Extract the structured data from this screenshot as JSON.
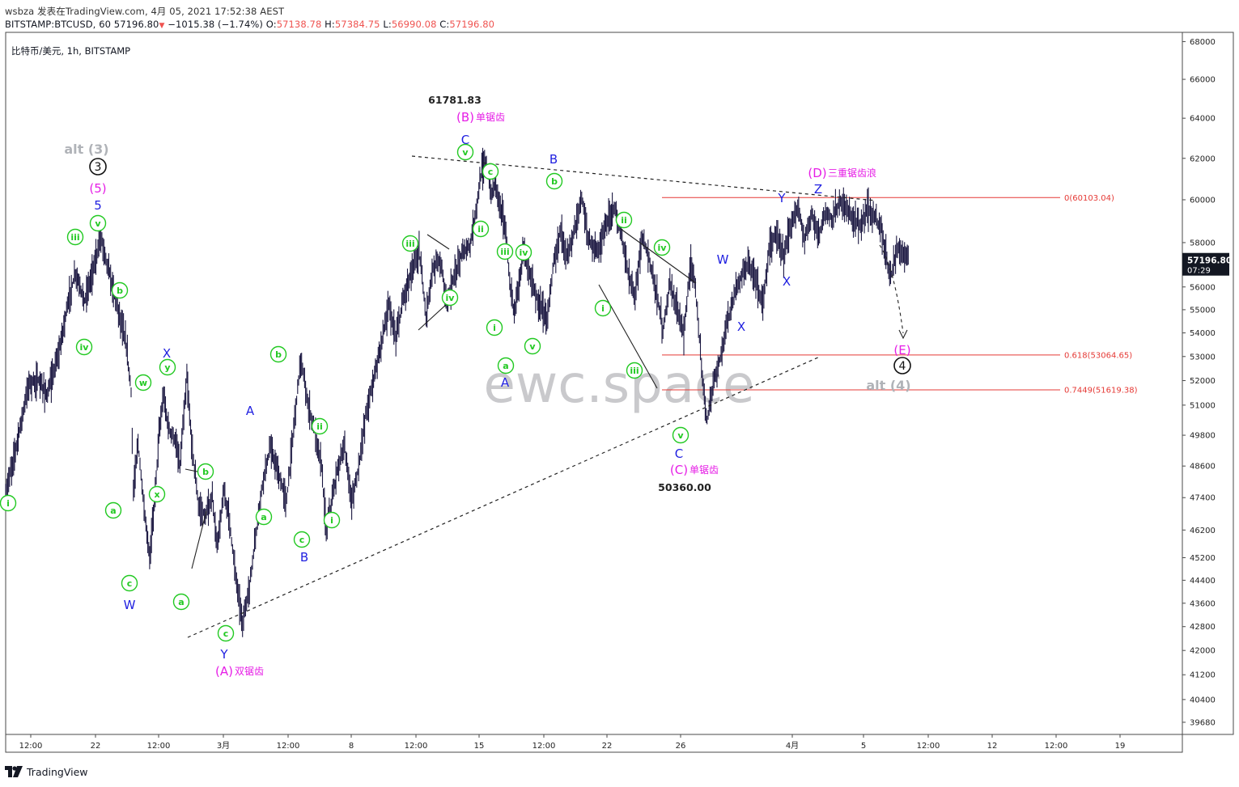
{
  "header": {
    "line1": "wsbza 发表在TradingView.com, 4月 05, 2021 17:52:38 AEST",
    "symbol": "BITSTAMP:BTCUSD, 60",
    "last": "57196.80",
    "change": "−1015.38 (−1.74%)",
    "o_label": "O:",
    "o_value": "57138.78",
    "h_label": "H:",
    "h_value": "57384.75",
    "l_label": "L:",
    "l_value": "56990.08",
    "c_label": "C:",
    "c_value": "57196.80"
  },
  "pane_title": "比特币/美元, 1h, BITSTAMP",
  "watermark": "ewc.space",
  "footer": {
    "brand": "TradingView"
  },
  "price_tag": {
    "price": "57196.80",
    "countdown": "07:29",
    "color": "#131722"
  },
  "colors": {
    "candles": "#1a1640",
    "wave_green": "#22c922",
    "wave_blue": "#1f1fe0",
    "wave_magenta": "#e61ee6",
    "alt_gray": "#b0b3b8",
    "fib_red": "#e53935",
    "trendline": "#222222"
  },
  "chart_data": {
    "type": "candlestick",
    "symbol": "BITSTAMP:BTCUSD",
    "interval": "1h",
    "y_ticks": [
      68000,
      66000,
      64000,
      62000,
      60000,
      58000,
      56000,
      55000,
      54000,
      53000,
      52000,
      51000,
      49800,
      48600,
      47400,
      46200,
      45200,
      44400,
      43600,
      42800,
      42000,
      41200,
      40400,
      39680
    ],
    "y_scale": "log",
    "ylim": [
      39300,
      68500
    ],
    "x_ticks": [
      "12:00",
      "22",
      "12:00",
      "3月",
      "12:00",
      "8",
      "12:00",
      "15",
      "12:00",
      "22",
      "26",
      "4月",
      "5",
      "12:00",
      "12",
      "12:00",
      "19"
    ],
    "price_path": [
      [
        0,
        47600
      ],
      [
        0.3,
        48700
      ],
      [
        0.7,
        50500
      ],
      [
        1,
        51900
      ],
      [
        1.4,
        52000
      ],
      [
        1.8,
        51400
      ],
      [
        2.3,
        53200
      ],
      [
        2.7,
        55400
      ],
      [
        3,
        56600
      ],
      [
        3.4,
        55400
      ],
      [
        3.8,
        56900
      ],
      [
        4.1,
        58300
      ],
      [
        4.4,
        56900
      ],
      [
        4.6,
        56000
      ],
      [
        4.9,
        54800
      ],
      [
        5.2,
        53400
      ],
      [
        5.4,
        51600
      ],
      [
        5.5,
        47600
      ],
      [
        5.7,
        49500
      ],
      [
        6,
        46600
      ],
      [
        6.2,
        45200
      ],
      [
        6.4,
        47200
      ],
      [
        6.6,
        49800
      ],
      [
        6.8,
        51400
      ],
      [
        7,
        50100
      ],
      [
        7.3,
        49600
      ],
      [
        7.5,
        48600
      ],
      [
        7.8,
        52100
      ],
      [
        8,
        49600
      ],
      [
        8.3,
        47100
      ],
      [
        8.6,
        46700
      ],
      [
        8.9,
        47400
      ],
      [
        9.1,
        45600
      ],
      [
        9.4,
        47600
      ],
      [
        9.6,
        46800
      ],
      [
        9.9,
        44600
      ],
      [
        10.2,
        42900
      ],
      [
        10.5,
        44200
      ],
      [
        10.8,
        46200
      ],
      [
        11.1,
        48200
      ],
      [
        11.4,
        49300
      ],
      [
        11.8,
        48100
      ],
      [
        12.1,
        47300
      ],
      [
        12.4,
        50100
      ],
      [
        12.7,
        52900
      ],
      [
        13,
        51100
      ],
      [
        13.3,
        50000
      ],
      [
        13.6,
        48600
      ],
      [
        13.8,
        46200
      ],
      [
        14.1,
        47500
      ],
      [
        14.3,
        48600
      ],
      [
        14.6,
        49300
      ],
      [
        14.9,
        47200
      ],
      [
        15.2,
        48600
      ],
      [
        15.5,
        50600
      ],
      [
        15.8,
        51900
      ],
      [
        16.2,
        53700
      ],
      [
        16.5,
        55200
      ],
      [
        16.8,
        53700
      ],
      [
        17.1,
        55400
      ],
      [
        17.5,
        56800
      ],
      [
        17.8,
        57600
      ],
      [
        18.1,
        54800
      ],
      [
        18.4,
        56800
      ],
      [
        18.7,
        57300
      ],
      [
        19,
        55300
      ],
      [
        19.3,
        56400
      ],
      [
        19.6,
        57400
      ],
      [
        20,
        57900
      ],
      [
        20.2,
        59200
      ],
      [
        20.5,
        61400
      ],
      [
        20.7,
        61800
      ],
      [
        20.9,
        60200
      ],
      [
        21.1,
        60800
      ],
      [
        21.3,
        59700
      ],
      [
        21.5,
        58800
      ],
      [
        21.7,
        56200
      ],
      [
        21.9,
        54800
      ],
      [
        22.1,
        56200
      ],
      [
        22.3,
        57700
      ],
      [
        22.6,
        56400
      ],
      [
        22.9,
        55400
      ],
      [
        23.3,
        54600
      ],
      [
        23.6,
        57200
      ],
      [
        23.9,
        58600
      ],
      [
        24.2,
        57300
      ],
      [
        24.5,
        58600
      ],
      [
        24.8,
        60100
      ],
      [
        25.1,
        58100
      ],
      [
        25.5,
        57600
      ],
      [
        25.8,
        58600
      ],
      [
        26.2,
        59700
      ],
      [
        26.5,
        58300
      ],
      [
        26.8,
        56600
      ],
      [
        27.1,
        55600
      ],
      [
        27.4,
        58300
      ],
      [
        27.7,
        57300
      ],
      [
        28,
        55900
      ],
      [
        28.3,
        54100
      ],
      [
        28.6,
        56200
      ],
      [
        28.9,
        55100
      ],
      [
        29.2,
        53900
      ],
      [
        29.5,
        57300
      ],
      [
        29.7,
        55900
      ],
      [
        30,
        52100
      ],
      [
        30.2,
        50400
      ],
      [
        30.5,
        52100
      ],
      [
        30.8,
        53100
      ],
      [
        31.1,
        54600
      ],
      [
        31.4,
        55700
      ],
      [
        31.7,
        56600
      ],
      [
        32,
        57000
      ],
      [
        32.3,
        56300
      ],
      [
        32.6,
        55300
      ],
      [
        32.9,
        57900
      ],
      [
        33.2,
        58400
      ],
      [
        33.5,
        57300
      ],
      [
        33.8,
        58900
      ],
      [
        34.1,
        59600
      ],
      [
        34.4,
        58100
      ],
      [
        34.7,
        59300
      ],
      [
        35,
        58300
      ],
      [
        35.3,
        59400
      ],
      [
        35.6,
        59100
      ],
      [
        35.9,
        59900
      ],
      [
        36.2,
        59500
      ],
      [
        36.5,
        59200
      ],
      [
        36.8,
        58700
      ],
      [
        37.1,
        59600
      ],
      [
        37.4,
        59200
      ],
      [
        37.7,
        58700
      ],
      [
        37.9,
        57400
      ],
      [
        38.1,
        56400
      ],
      [
        38.4,
        57800
      ],
      [
        38.7,
        57400
      ],
      [
        38.9,
        57200
      ]
    ],
    "high": 61781.83,
    "low": 50360.0,
    "last_close": 57196.8,
    "fib_levels": [
      {
        "label": "0(60103.04)",
        "value": 60103.04
      },
      {
        "label": "0.618(53064.65)",
        "value": 53064.65
      },
      {
        "label": "0.7449(51619.38)",
        "value": 51619.38
      }
    ],
    "price_labels": [
      "61781.83",
      "50360.00"
    ],
    "wave_labels": {
      "green": [
        "v",
        "iii",
        "iv",
        "b",
        "i",
        "a",
        "c",
        "w",
        "y",
        "x",
        "a",
        "b",
        "c",
        "a",
        "b",
        "c",
        "i",
        "ii",
        "iii",
        "iv",
        "v",
        "c",
        "ii",
        "i",
        "iii",
        "iv",
        "a",
        "v",
        "b",
        "ii",
        "iv",
        "i",
        "iii",
        "v"
      ],
      "blue": [
        "5",
        "W",
        "X",
        "Y",
        "A",
        "B",
        "C",
        "A",
        "B",
        "C",
        "W",
        "X",
        "Y",
        "X",
        "Z"
      ],
      "magenta": [
        {
          "label": "(5)",
          "text": ""
        },
        {
          "label": "(A)",
          "text": "双锯齿"
        },
        {
          "label": "(B)",
          "text": "单锯齿"
        },
        {
          "label": "(C)",
          "text": "单锯齿"
        },
        {
          "label": "(D)",
          "text": "三重锯齿浪"
        },
        {
          "label": "(E)",
          "text": ""
        }
      ],
      "black_circled": [
        "3",
        "4"
      ],
      "alt": [
        "alt (3)",
        "alt (4)"
      ]
    }
  }
}
